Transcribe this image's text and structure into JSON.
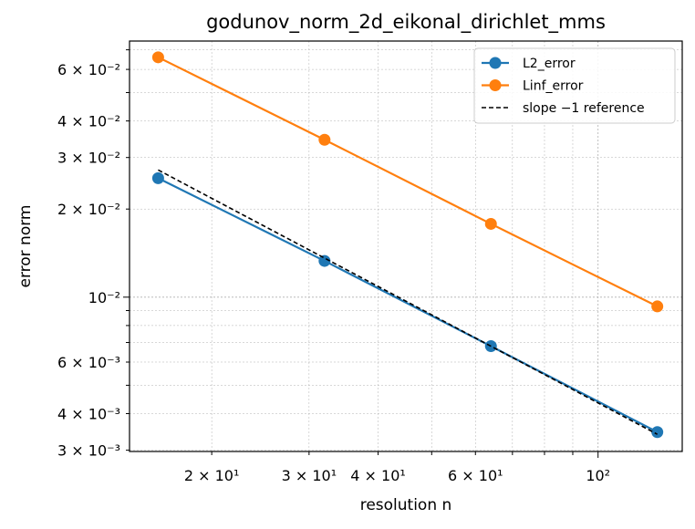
{
  "chart_data": {
    "type": "line",
    "title": "godunov_norm_2d_eikonal_dirichlet_mms",
    "xlabel": "resolution n",
    "ylabel": "error norm",
    "xscale": "log",
    "yscale": "log",
    "xlim": [
      14.2,
      142
    ],
    "ylim": [
      0.00297,
      0.075
    ],
    "grid": true,
    "legend_position": "top-right",
    "x": [
      16,
      32,
      64,
      128
    ],
    "series": [
      {
        "name": "L2_error",
        "values": [
          0.0255,
          0.0133,
          0.0068,
          0.00346
        ],
        "color": "#1f77b4",
        "style": "solid-marker"
      },
      {
        "name": "Linf_error",
        "values": [
          0.066,
          0.0345,
          0.0178,
          0.0093
        ],
        "color": "#ff7f0e",
        "style": "solid-marker"
      },
      {
        "name": "slope −1 reference",
        "values": [
          0.0272,
          0.0136,
          0.0068,
          0.0034
        ],
        "color": "#000000",
        "style": "dashed"
      }
    ],
    "xticks": [
      {
        "value": 20,
        "label": "2 × 10¹"
      },
      {
        "value": 30,
        "label": "3 × 10¹"
      },
      {
        "value": 40,
        "label": "4 × 10¹"
      },
      {
        "value": 60,
        "label": "6 × 10¹"
      },
      {
        "value": 100,
        "label": "10²"
      }
    ],
    "yticks": [
      {
        "value": 0.003,
        "label": "3 × 10⁻³"
      },
      {
        "value": 0.004,
        "label": "4 × 10⁻³"
      },
      {
        "value": 0.006,
        "label": "6 × 10⁻³"
      },
      {
        "value": 0.01,
        "label": "10⁻²"
      },
      {
        "value": 0.02,
        "label": "2 × 10⁻²"
      },
      {
        "value": 0.03,
        "label": "3 × 10⁻²"
      },
      {
        "value": 0.04,
        "label": "4 × 10⁻²"
      },
      {
        "value": 0.06,
        "label": "6 × 10⁻²"
      }
    ]
  }
}
